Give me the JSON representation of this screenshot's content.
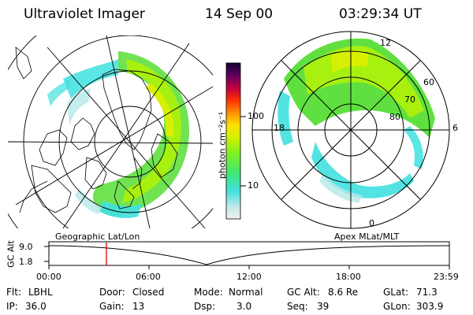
{
  "header": {
    "instrument": "Ultraviolet Imager",
    "date": "14 Sep 00",
    "time": "03:29:34 UT"
  },
  "colorbar": {
    "unit_label": "photon cm⁻²s⁻¹",
    "ticks": [
      "100",
      "10"
    ],
    "scale": "log",
    "colors": [
      "#e8e8e8",
      "#b8e8e8",
      "#40e0e0",
      "#60f060",
      "#a0f000",
      "#e0f000",
      "#ffe000",
      "#ff9000",
      "#ff3000",
      "#c00040",
      "#600060",
      "#100030"
    ]
  },
  "left_panel": {
    "caption": "Geographic Lat/Lon"
  },
  "right_panel": {
    "caption": "Apex MLat/MLT",
    "mlt_labels": {
      "top": "12",
      "bottom": "0",
      "left": "18",
      "right": "6"
    },
    "lat_labels": [
      "60",
      "70",
      "80"
    ]
  },
  "altitude_plot": {
    "ylabel": "GC Alt",
    "yticks": [
      "9.0",
      "1.8"
    ],
    "xticks": [
      "00:00",
      "06:00",
      "12:00",
      "18:00",
      "23:59"
    ],
    "marker_time": "03:29",
    "marker_color": "#e00000"
  },
  "info": {
    "flt": {
      "label": "Flt:",
      "value": "LBHL"
    },
    "ip": {
      "label": "IP:",
      "value": "36.0"
    },
    "door": {
      "label": "Door:",
      "value": "Closed"
    },
    "gain": {
      "label": "Gain:",
      "value": "13"
    },
    "mode": {
      "label": "Mode:",
      "value": "Normal"
    },
    "dsp": {
      "label": "Dsp:",
      "value": "3.0"
    },
    "gcalt": {
      "label": "GC Alt:",
      "value": "8.6 Re"
    },
    "seq": {
      "label": "Seq:",
      "value": "39"
    },
    "glat": {
      "label": "GLat:",
      "value": "71.3"
    },
    "glon": {
      "label": "GLon:",
      "value": "303.9"
    }
  }
}
